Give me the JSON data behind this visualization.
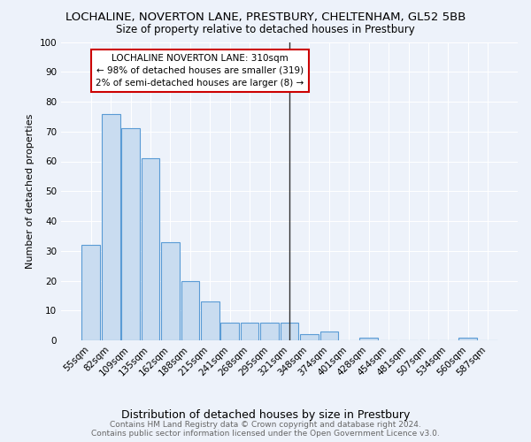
{
  "title": "LOCHALINE, NOVERTON LANE, PRESTBURY, CHELTENHAM, GL52 5BB",
  "subtitle": "Size of property relative to detached houses in Prestbury",
  "xlabel": "Distribution of detached houses by size in Prestbury",
  "ylabel": "Number of detached properties",
  "footer": "Contains HM Land Registry data © Crown copyright and database right 2024.\nContains public sector information licensed under the Open Government Licence v3.0.",
  "categories": [
    "55sqm",
    "82sqm",
    "109sqm",
    "135sqm",
    "162sqm",
    "188sqm",
    "215sqm",
    "241sqm",
    "268sqm",
    "295sqm",
    "321sqm",
    "348sqm",
    "374sqm",
    "401sqm",
    "428sqm",
    "454sqm",
    "481sqm",
    "507sqm",
    "534sqm",
    "560sqm",
    "587sqm"
  ],
  "values": [
    32,
    76,
    71,
    61,
    33,
    20,
    13,
    6,
    6,
    6,
    6,
    2,
    3,
    0,
    1,
    0,
    0,
    0,
    0,
    1,
    0
  ],
  "bar_color": "#c9dcf0",
  "bar_edge_color": "#5a9bd5",
  "marker_label": "LOCHALINE NOVERTON LANE: 310sqm",
  "annotation_line1": "← 98% of detached houses are smaller (319)",
  "annotation_line2": "2% of semi-detached houses are larger (8) →",
  "annotation_box_color": "#ffffff",
  "annotation_box_edge": "#cc0000",
  "vline_color": "#333333",
  "vline_x": 10.0,
  "ylim": [
    0,
    100
  ],
  "yticks": [
    0,
    10,
    20,
    30,
    40,
    50,
    60,
    70,
    80,
    90,
    100
  ],
  "background_color": "#edf2fa",
  "plot_background": "#edf2fa",
  "grid_color": "#ffffff",
  "title_fontsize": 9.5,
  "subtitle_fontsize": 8.5,
  "xlabel_fontsize": 9,
  "ylabel_fontsize": 8,
  "tick_fontsize": 7.5,
  "annot_fontsize": 7.5,
  "footer_fontsize": 6.5
}
